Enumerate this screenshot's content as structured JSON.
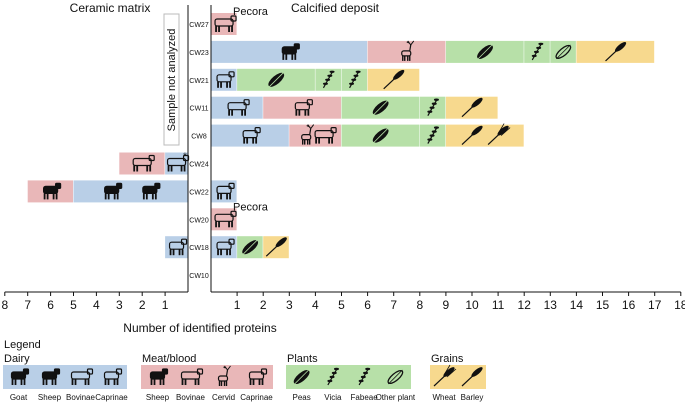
{
  "chart_data": {
    "type": "bar",
    "orientation": "horizontal-diverging",
    "panels": {
      "left": "Ceramic matrix",
      "right": "Calcified deposit"
    },
    "xlabel": "Number of identified proteins",
    "left_ticks": [
      "8",
      "7",
      "6",
      "5",
      "4",
      "3",
      "2",
      "1"
    ],
    "right_ticks": [
      "1",
      "2",
      "3",
      "4",
      "5",
      "6",
      "7",
      "8",
      "9",
      "10",
      "11",
      "12",
      "13",
      "14",
      "15",
      "16",
      "17",
      "18"
    ],
    "xlim_left": [
      0,
      8
    ],
    "xlim_right": [
      0,
      18
    ],
    "not_analyzed_label": "Sample not analyzed",
    "categories": [
      "CW27",
      "CW23",
      "CW21",
      "CW11",
      "CW8",
      "CW24",
      "CW22",
      "CW20",
      "CW18",
      "CW10"
    ],
    "colors": {
      "dairy": "#b9cfe7",
      "meat": "#e9b7b8",
      "plants": "#b7e0a8",
      "grains": "#f7d98e"
    },
    "rows": [
      {
        "id": "CW27",
        "note": "Pecora",
        "right": [
          {
            "start": 0,
            "end": 1,
            "group": "meat",
            "icons": [
              "bovinae-outline"
            ]
          }
        ],
        "left": []
      },
      {
        "id": "CW23",
        "right": [
          {
            "start": 0,
            "end": 6,
            "group": "dairy",
            "icons": [
              "sheep-filled"
            ]
          },
          {
            "start": 6,
            "end": 9,
            "group": "meat",
            "icons": [
              "cervid"
            ]
          },
          {
            "start": 9,
            "end": 12,
            "group": "plants",
            "icons": [
              "peas"
            ]
          },
          {
            "start": 12,
            "end": 13,
            "group": "plants",
            "icons": [
              "vicia"
            ]
          },
          {
            "start": 13,
            "end": 14,
            "group": "plants",
            "icons": [
              "other-plant"
            ]
          },
          {
            "start": 14,
            "end": 17,
            "group": "grains",
            "icons": [
              "barley"
            ]
          }
        ],
        "left": []
      },
      {
        "id": "CW21",
        "right": [
          {
            "start": 0,
            "end": 1,
            "group": "dairy",
            "icons": [
              "caprinae-outline"
            ]
          },
          {
            "start": 1,
            "end": 4,
            "group": "plants",
            "icons": [
              "peas"
            ]
          },
          {
            "start": 4,
            "end": 5,
            "group": "plants",
            "icons": [
              "vicia"
            ]
          },
          {
            "start": 5,
            "end": 6,
            "group": "plants",
            "icons": [
              "fabeae"
            ]
          },
          {
            "start": 6,
            "end": 8,
            "group": "grains",
            "icons": [
              "barley"
            ]
          }
        ],
        "left": []
      },
      {
        "id": "CW11",
        "right": [
          {
            "start": 0,
            "end": 2,
            "group": "dairy",
            "icons": [
              "bovinae-outline"
            ]
          },
          {
            "start": 2,
            "end": 5,
            "group": "meat",
            "icons": [
              "caprinae-outline"
            ]
          },
          {
            "start": 5,
            "end": 8,
            "group": "plants",
            "icons": [
              "peas"
            ]
          },
          {
            "start": 8,
            "end": 9,
            "group": "plants",
            "icons": [
              "vicia"
            ]
          },
          {
            "start": 9,
            "end": 11,
            "group": "grains",
            "icons": [
              "barley"
            ]
          }
        ],
        "left": []
      },
      {
        "id": "CW8",
        "right": [
          {
            "start": 0,
            "end": 3,
            "group": "dairy",
            "icons": [
              "caprinae-outline"
            ]
          },
          {
            "start": 3,
            "end": 5,
            "group": "meat",
            "icons": [
              "cervid",
              "bovinae-outline"
            ]
          },
          {
            "start": 5,
            "end": 8,
            "group": "plants",
            "icons": [
              "peas"
            ]
          },
          {
            "start": 8,
            "end": 9,
            "group": "plants",
            "icons": [
              "fabeae"
            ]
          },
          {
            "start": 9,
            "end": 12,
            "group": "grains",
            "icons": [
              "barley",
              "wheat"
            ]
          }
        ],
        "left": []
      },
      {
        "id": "CW24",
        "right": [],
        "left": [
          {
            "start": 0,
            "end": 1,
            "group": "dairy",
            "icons": [
              "bovinae-outline"
            ],
            "mark": "*"
          },
          {
            "start": 1,
            "end": 3,
            "group": "meat",
            "icons": [
              "bovinae-outline"
            ]
          }
        ]
      },
      {
        "id": "CW22",
        "right": [
          {
            "start": 0,
            "end": 1,
            "group": "dairy",
            "icons": [
              "caprinae-outline"
            ]
          }
        ],
        "left": [
          {
            "start": 0,
            "end": 5,
            "group": "dairy",
            "icons": [
              "sheep-filled",
              "goat-filled"
            ]
          },
          {
            "start": 5,
            "end": 7,
            "group": "meat",
            "icons": [
              "sheep-filled"
            ]
          }
        ]
      },
      {
        "id": "CW20",
        "note": "Pecora",
        "right": [
          {
            "start": 0,
            "end": 1,
            "group": "meat",
            "icons": [
              "bovinae-outline"
            ]
          }
        ],
        "left": []
      },
      {
        "id": "CW18",
        "right": [
          {
            "start": 0,
            "end": 1,
            "group": "dairy",
            "icons": [
              "caprinae-outline"
            ]
          },
          {
            "start": 1,
            "end": 2,
            "group": "plants",
            "icons": [
              "peas"
            ]
          },
          {
            "start": 2,
            "end": 3,
            "group": "grains",
            "icons": [
              "barley"
            ]
          }
        ],
        "left": [
          {
            "start": 0,
            "end": 1,
            "group": "dairy",
            "icons": [
              "caprinae-outline"
            ]
          }
        ]
      },
      {
        "id": "CW10",
        "right": [],
        "left": []
      }
    ],
    "legend": {
      "title": "Legend",
      "groups": [
        {
          "key": "dairy",
          "label": "Dairy",
          "items": [
            {
              "icon": "goat-filled",
              "label": "Goat"
            },
            {
              "icon": "sheep-filled",
              "label": "Sheep"
            },
            {
              "icon": "bovinae-outline",
              "label": "Bovinae"
            },
            {
              "icon": "caprinae-outline",
              "label": "Caprinae"
            }
          ]
        },
        {
          "key": "meat",
          "label": "Meat/blood",
          "items": [
            {
              "icon": "sheep-filled",
              "label": "Sheep"
            },
            {
              "icon": "bovinae-outline",
              "label": "Bovinae"
            },
            {
              "icon": "cervid",
              "label": "Cervid"
            },
            {
              "icon": "caprinae-outline",
              "label": "Caprinae"
            }
          ]
        },
        {
          "key": "plants",
          "label": "Plants",
          "items": [
            {
              "icon": "peas",
              "label": "Peas"
            },
            {
              "icon": "vicia",
              "label": "Vicia"
            },
            {
              "icon": "fabeae",
              "label": "Fabeae"
            },
            {
              "icon": "other-plant",
              "label": "Other plant"
            }
          ]
        },
        {
          "key": "grains",
          "label": "Grains",
          "items": [
            {
              "icon": "wheat",
              "label": "Wheat"
            },
            {
              "icon": "barley",
              "label": "Barley"
            }
          ]
        }
      ]
    }
  }
}
